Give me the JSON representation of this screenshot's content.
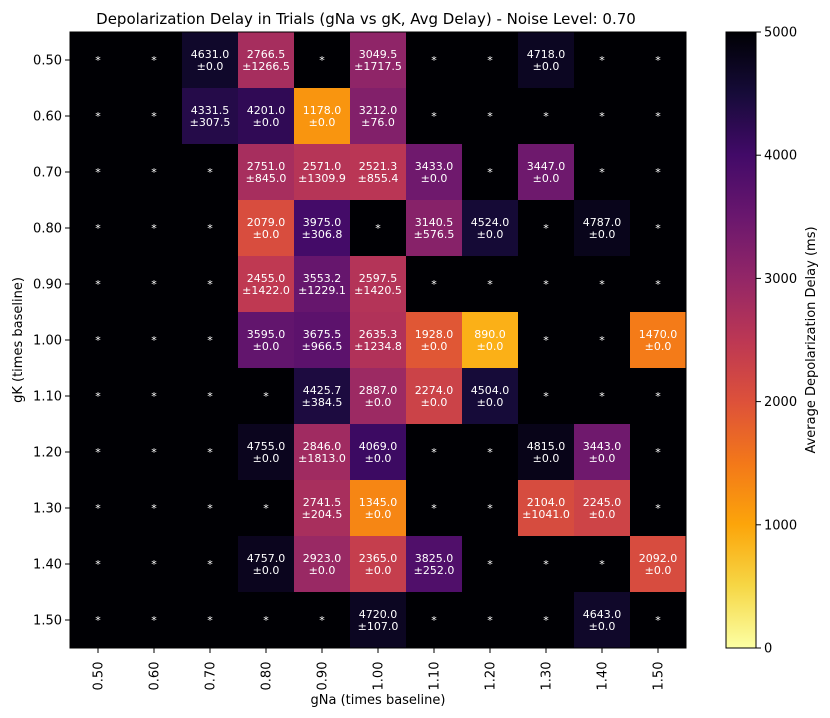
{
  "chart_data": {
    "type": "heatmap",
    "title": "Depolarization Delay in Trials (gNa vs gK, Avg Delay) - Noise Level: 0.70",
    "xlabel": "gNa (times baseline)",
    "ylabel": "gK (times baseline)",
    "x_categories": [
      "0.50",
      "0.60",
      "0.70",
      "0.80",
      "0.90",
      "1.00",
      "1.10",
      "1.20",
      "1.30",
      "1.40",
      "1.50"
    ],
    "y_categories": [
      "0.50",
      "0.60",
      "0.70",
      "0.80",
      "0.90",
      "1.00",
      "1.10",
      "1.20",
      "1.30",
      "1.40",
      "1.50"
    ],
    "missing_label": "*",
    "missing_value": 5000,
    "cells": [
      [
        null,
        null,
        [
          4631.0,
          "±0.0"
        ],
        [
          2766.5,
          "±1266.5"
        ],
        null,
        [
          3049.5,
          "±1717.5"
        ],
        null,
        null,
        [
          4718.0,
          "±0.0"
        ],
        null,
        null
      ],
      [
        null,
        null,
        [
          4331.5,
          "±307.5"
        ],
        [
          4201.0,
          "±0.0"
        ],
        [
          1178.0,
          "±0.0"
        ],
        [
          3212.0,
          "±76.0"
        ],
        null,
        null,
        null,
        null,
        null
      ],
      [
        null,
        null,
        null,
        [
          2751.0,
          "±845.0"
        ],
        [
          2571.0,
          "±1309.9"
        ],
        [
          2521.3,
          "±855.4"
        ],
        [
          3433.0,
          "±0.0"
        ],
        null,
        [
          3447.0,
          "±0.0"
        ],
        null,
        null
      ],
      [
        null,
        null,
        null,
        [
          2079.0,
          "±0.0"
        ],
        [
          3975.0,
          "±306.8"
        ],
        null,
        [
          3140.5,
          "±576.5"
        ],
        [
          4524.0,
          "±0.0"
        ],
        null,
        [
          4787.0,
          "±0.0"
        ],
        null
      ],
      [
        null,
        null,
        null,
        [
          2455.0,
          "±1422.0"
        ],
        [
          3553.2,
          "±1229.1"
        ],
        [
          2597.5,
          "±1420.5"
        ],
        null,
        null,
        null,
        null,
        null
      ],
      [
        null,
        null,
        null,
        [
          3595.0,
          "±0.0"
        ],
        [
          3675.5,
          "±966.5"
        ],
        [
          2635.3,
          "±1234.8"
        ],
        [
          1928.0,
          "±0.0"
        ],
        [
          890.0,
          "±0.0"
        ],
        null,
        null,
        [
          1470.0,
          "±0.0"
        ]
      ],
      [
        null,
        null,
        null,
        null,
        [
          4425.7,
          "±384.5"
        ],
        [
          2887.0,
          "±0.0"
        ],
        [
          2274.0,
          "±0.0"
        ],
        [
          4504.0,
          "±0.0"
        ],
        null,
        null,
        null
      ],
      [
        null,
        null,
        null,
        [
          4755.0,
          "±0.0"
        ],
        [
          2846.0,
          "±1813.0"
        ],
        [
          4069.0,
          "±0.0"
        ],
        null,
        null,
        [
          4815.0,
          "±0.0"
        ],
        [
          3443.0,
          "±0.0"
        ],
        null
      ],
      [
        null,
        null,
        null,
        null,
        [
          2741.5,
          "±204.5"
        ],
        [
          1345.0,
          "±0.0"
        ],
        null,
        null,
        [
          2104.0,
          "±1041.0"
        ],
        [
          2245.0,
          "±0.0"
        ],
        null
      ],
      [
        null,
        null,
        null,
        [
          4757.0,
          "±0.0"
        ],
        [
          2923.0,
          "±0.0"
        ],
        [
          2365.0,
          "±0.0"
        ],
        [
          3825.0,
          "±252.0"
        ],
        null,
        null,
        null,
        [
          2092.0,
          "±0.0"
        ]
      ],
      [
        null,
        null,
        null,
        null,
        null,
        [
          4720.0,
          "±107.0"
        ],
        null,
        null,
        null,
        [
          4643.0,
          "±0.0"
        ],
        null
      ]
    ],
    "colorbar": {
      "label": "Average Depolarization Delay (ms)",
      "range": [
        0,
        5000
      ],
      "ticks": [
        0,
        1000,
        2000,
        3000,
        4000,
        5000
      ],
      "colormap": "inferno_r"
    },
    "grid": false
  }
}
